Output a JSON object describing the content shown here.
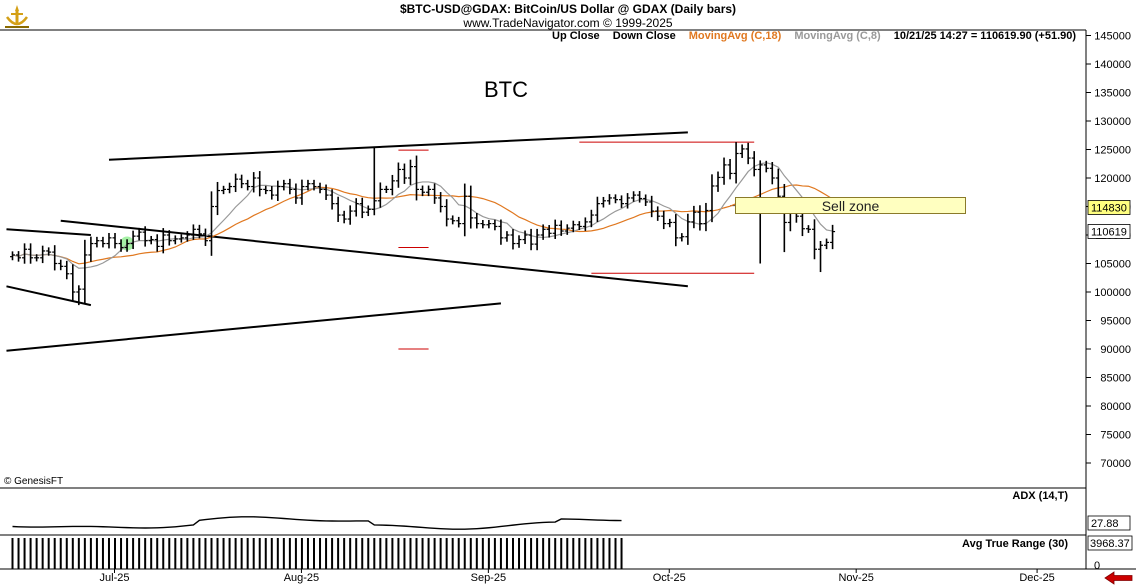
{
  "header": {
    "line1": "$BTC-USD@GDAX:  BitCoin/US Dollar @ GDAX  (Daily bars)",
    "line2": "www.TradeNavigator.com © 1999-2025"
  },
  "legend": {
    "up_close": "Up Close",
    "down_close": "Down Close",
    "ma18": "MovingAvg (C,18)",
    "ma8": "MovingAvg (C,8)",
    "quote": "10/21/25 14:27 = 110619.90 (+51.90)"
  },
  "colors": {
    "ma18": "#e07820",
    "ma8": "#999999",
    "trend": "#000000",
    "level": "#cc0000",
    "highlight": "#90ee90",
    "zone": "#ffffc0"
  },
  "annotations": {
    "title": "BTC",
    "sell_zone": "Sell zone",
    "copyright": "© GenesisFT"
  },
  "chart_data": [
    {
      "type": "bar",
      "subtype": "ohlc-daily",
      "symbol": "$BTC-USD@GDAX",
      "x_tick_labels": [
        "Jul-25",
        "Aug-25",
        "Sep-25",
        "Oct-25",
        "Nov-25",
        "Dec-25"
      ],
      "x_tick_days": [
        0,
        31,
        62,
        92,
        123,
        153
      ],
      "y_ticks": [
        145000,
        140000,
        135000,
        130000,
        125000,
        120000,
        115000,
        110000,
        105000,
        100000,
        95000,
        90000,
        85000,
        80000,
        75000,
        70000
      ],
      "ylim": [
        65000,
        146000
      ],
      "price_labels": [
        {
          "value": 114830,
          "text": "114830",
          "bg": "#ffff80"
        },
        {
          "value": 110619,
          "text": "110619",
          "bg": "#ffffff"
        }
      ],
      "closes": [
        106500,
        106000,
        107500,
        106000,
        106000,
        107200,
        107000,
        105000,
        104500,
        103200,
        100000,
        100500,
        106500,
        108500,
        109000,
        108500,
        109500,
        108500,
        107800,
        108500,
        109800,
        110500,
        109000,
        109200,
        108000,
        110000,
        109000,
        109300,
        109500,
        110000,
        111000,
        110200,
        109000,
        115000,
        117800,
        118000,
        118500,
        119800,
        119000,
        118500,
        120000,
        118000,
        117800,
        117000,
        118500,
        119000,
        118000,
        116500,
        118500,
        119000,
        118500,
        118000,
        117000,
        115500,
        113500,
        112800,
        114200,
        115500,
        114000,
        114500,
        116000,
        118000,
        118000,
        119500,
        121500,
        120000,
        122000,
        118000,
        117500,
        118000,
        116500,
        115000,
        112800,
        112500,
        112000,
        116800,
        113000,
        112000,
        111800,
        112000,
        111500,
        109500,
        110000,
        108500,
        109200,
        110000,
        108400,
        110000,
        111000,
        110300,
        111700,
        110700,
        111200,
        111800,
        111500,
        112300,
        113500,
        115500,
        116000,
        116500,
        116200,
        115500,
        116500,
        117000,
        116400,
        115800,
        114200,
        113300,
        112000,
        112200,
        109500,
        109700,
        112300,
        114000,
        112000,
        114300,
        118600,
        120100,
        122300,
        120800,
        124300,
        125100,
        123500,
        121500,
        122300,
        121700,
        120000,
        116800,
        112200,
        115100,
        113300,
        111100,
        111000,
        107500,
        108200,
        108700,
        110600
      ],
      "moving_averages": [
        {
          "name": "MovingAvg (C,18)",
          "period": 18
        },
        {
          "name": "MovingAvg (C,8)",
          "period": 8
        }
      ],
      "trendlines": [
        {
          "from": [
            -1,
            111000
          ],
          "to": [
            13,
            110000
          ]
        },
        {
          "from": [
            -1,
            101000
          ],
          "to": [
            13,
            97700
          ]
        },
        {
          "from": [
            8,
            112500
          ],
          "to": [
            112,
            101000
          ]
        },
        {
          "from": [
            16,
            123200
          ],
          "to": [
            112,
            128000
          ]
        },
        {
          "from": [
            -1,
            89700
          ],
          "to": [
            81,
            98000
          ]
        }
      ],
      "red_levels": [
        {
          "from": [
            64,
            124900
          ],
          "to": [
            69,
            124900
          ]
        },
        {
          "from": [
            64,
            107800
          ],
          "to": [
            69,
            107800
          ]
        },
        {
          "from": [
            64,
            90000
          ],
          "to": [
            69,
            90000
          ]
        },
        {
          "from": [
            94,
            126300
          ],
          "to": [
            123,
            126300
          ]
        },
        {
          "from": [
            96,
            103300
          ],
          "to": [
            123,
            103300
          ]
        }
      ],
      "sell_zone": [
        113800,
        116500
      ],
      "highlight_day": 19,
      "last_day": 101
    },
    {
      "type": "line",
      "name": "ADX (14,T)",
      "last_value": 27.88,
      "value_label": "27.88"
    },
    {
      "type": "bar",
      "name": "Avg True Range (30)",
      "last_value": 3968.37,
      "value_label": "3968.37",
      "y_label": "0"
    }
  ]
}
